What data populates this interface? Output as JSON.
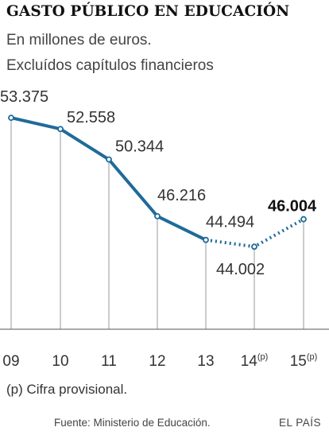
{
  "header": {
    "title": "GASTO PÚBLICO EN EDUCACIÓN",
    "subtitle_line1": "En millones de euros.",
    "subtitle_line2": "Excluídos capítulos financieros"
  },
  "footer": {
    "note": "(p) Cifra provisional.",
    "source": "Fuente: Ministerio de Educación.",
    "brand": "EL PAÍS"
  },
  "colors": {
    "line": "#1f6b99",
    "grid": "#9a9a9a",
    "text": "#333333"
  },
  "chart_data": {
    "type": "line",
    "title": "GASTO PÚBLICO EN EDUCACIÓN",
    "subtitle": "En millones de euros. Excluídos capítulos financieros",
    "x": [
      "09",
      "10",
      "11",
      "12",
      "13",
      "14",
      "15"
    ],
    "x_marks": [
      "",
      "",
      "",
      "",
      "",
      "(p)",
      "(p)"
    ],
    "provisional": [
      false,
      false,
      false,
      false,
      false,
      true,
      true
    ],
    "values": [
      53375,
      52558,
      50344,
      46216,
      44494,
      44002,
      46004
    ],
    "labels": [
      "53.375",
      "52.558",
      "50.344",
      "46.216",
      "44.494",
      "44.002",
      "46.004"
    ],
    "highlight_index": 6,
    "solid_until_index": 4,
    "ylim": [
      38000,
      55000
    ],
    "grid": "vertical",
    "xlabel": "",
    "ylabel": ""
  }
}
